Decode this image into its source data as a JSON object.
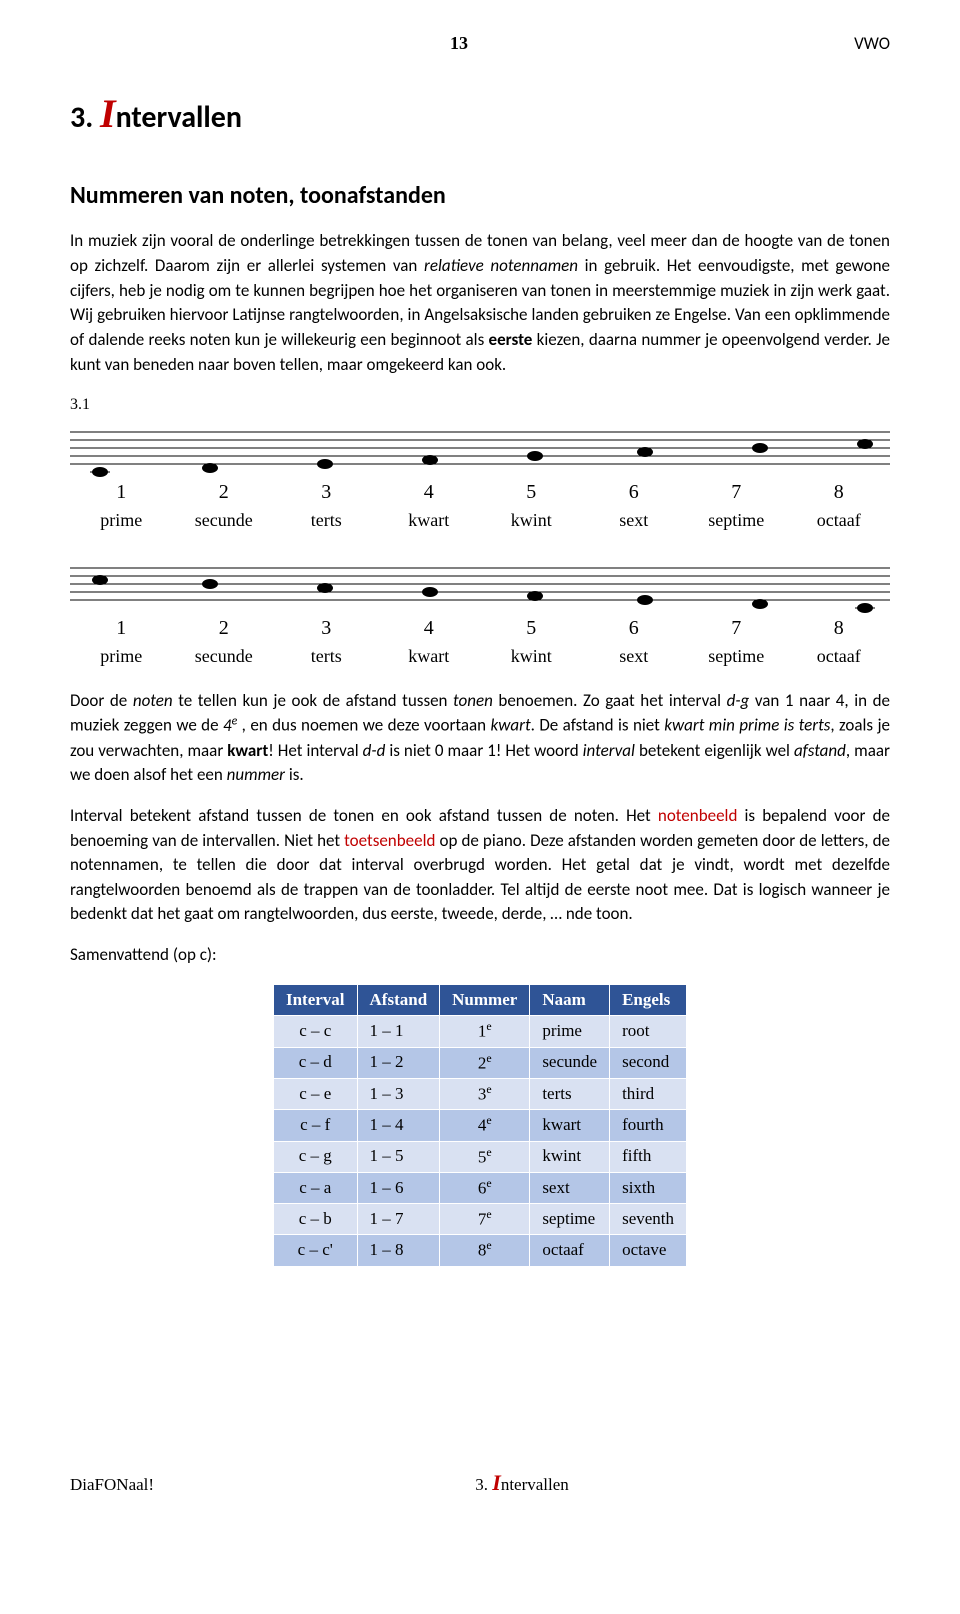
{
  "page": {
    "number": "13",
    "header_right_pre": "V",
    "header_right_red": "W",
    "header_right_post": "O"
  },
  "chapter": {
    "prefix": "3. ",
    "rest": "ntervallen"
  },
  "section_title": "Nummeren van noten, toonafstanden",
  "para1_a": "In muziek zijn vooral de onderlinge betrekkingen tussen de tonen van belang, veel meer dan de hoogte van de tonen op zichzelf. Daarom zijn er allerlei systemen van ",
  "para1_ital": "relatieve notennamen",
  "para1_b": " in gebruik. Het eenvoudigste, met gewone cijfers, heb je nodig om te kunnen begrijpen hoe het organiseren van tonen in meerstemmige muziek in zijn werk gaat. Wij gebruiken hiervoor Latijnse rangtelwoorden, in Angelsaksische landen gebruiken ze Engelse. Van een opklimmende of dalende reeks noten kun je willekeurig een beginnoot als ",
  "para1_bold": "eerste",
  "para1_c": " kiezen, daarna nummer je opeenvolgend verder. Je kunt van beneden naar boven tellen, maar omgekeerd kan ook.",
  "fig_label": "3.1",
  "staff": {
    "items": [
      {
        "n": "1",
        "name": "prime"
      },
      {
        "n": "2",
        "name": "secunde"
      },
      {
        "n": "3",
        "name": "terts"
      },
      {
        "n": "4",
        "name": "kwart"
      },
      {
        "n": "5",
        "name": "kwint"
      },
      {
        "n": "6",
        "name": "sext"
      },
      {
        "n": "7",
        "name": "septime"
      },
      {
        "n": "8",
        "name": "octaaf"
      }
    ]
  },
  "para2_a": "Door de ",
  "para2_i1": "noten",
  "para2_b": " te tellen kun je ook de afstand tussen ",
  "para2_i2": "tonen",
  "para2_c": " benoemen. Zo gaat het interval ",
  "para2_i3": "d-g",
  "para2_d": " van 1 naar 4, in de muziek zeggen we de ",
  "para2_i4": "4",
  "para2_sup": "e",
  "para2_e": " , en dus noemen we deze voortaan ",
  "para2_i5": "kwart",
  "para2_f": ". De afstand is niet ",
  "para2_i6": "kwart min prime is terts",
  "para2_g": ", zoals je zou verwachten, maar ",
  "para2_b2": "kwart",
  "para2_h": "! Het interval ",
  "para2_i7": "d-d",
  "para2_j": " is niet 0 maar 1! Het woord ",
  "para2_i8": "interval",
  "para2_k": " betekent eigenlijk wel ",
  "para2_i9": "afstand",
  "para2_l": ", maar we doen alsof het een ",
  "para2_i10": "nummer",
  "para2_m": " is.",
  "para3_a": "Interval betekent afstand tussen de tonen en ook afstand tussen de noten. Het ",
  "para3_r1": "notenbeeld",
  "para3_b": " is bepalend voor de benoeming van de intervallen. Niet het ",
  "para3_r2": "toetsenbeeld",
  "para3_c": " op de piano. Deze afstanden worden gemeten door de letters, de notennamen, te tellen die door dat interval overbrugd worden. Het getal dat je vindt, wordt met dezelfde rangtelwoorden benoemd als de trappen van de toonladder. Tel altijd de eerste noot mee. Dat is logisch wanneer je bedenkt dat het gaat om rangtelwoorden, dus eerste, tweede, derde, … nde toon.",
  "para4": "Samenvattend (op c):",
  "table": {
    "headers": [
      "Interval",
      "Afstand",
      "Nummer",
      "Naam",
      "Engels"
    ],
    "rows": [
      {
        "interval": "c – c",
        "afstand": "1 – 1",
        "num": "1",
        "naam": "prime",
        "eng": "root"
      },
      {
        "interval": "c – d",
        "afstand": "1 – 2",
        "num": "2",
        "naam": "secunde",
        "eng": "second"
      },
      {
        "interval": "c – e",
        "afstand": "1 – 3",
        "num": "3",
        "naam": "terts",
        "eng": "third"
      },
      {
        "interval": "c – f",
        "afstand": "1 – 4",
        "num": "4",
        "naam": "kwart",
        "eng": "fourth"
      },
      {
        "interval": "c – g",
        "afstand": "1 – 5",
        "num": "5",
        "naam": "kwint",
        "eng": "fifth"
      },
      {
        "interval": "c – a",
        "afstand": "1 – 6",
        "num": "6",
        "naam": "sext",
        "eng": "sixth"
      },
      {
        "interval": "c – b",
        "afstand": "1 – 7",
        "num": "7",
        "naam": "septime",
        "eng": "seventh"
      },
      {
        "interval": "c – c'",
        "afstand": "1 – 8",
        "num": "8",
        "naam": "octaaf",
        "eng": "octave"
      }
    ]
  },
  "footer": {
    "left_pre": "Dia",
    "left_red": "FON",
    "left_post": "aal!",
    "center_prefix": "3. ",
    "center_rest": "ntervallen"
  },
  "colors": {
    "accent_red": "#c00000",
    "th_bg": "#2f5496",
    "row_odd": "#d9e1f2",
    "row_even": "#b4c6e7"
  }
}
